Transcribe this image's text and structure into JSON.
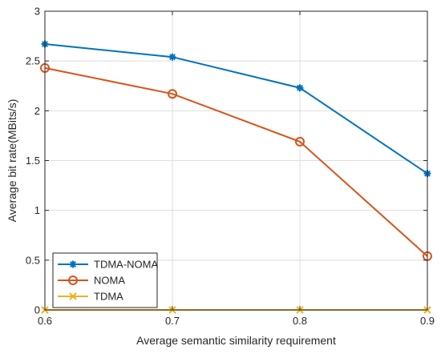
{
  "chart_data": {
    "type": "line",
    "xlabel": "Average semantic similarity requirement",
    "ylabel": "Average bit rate(MBits/s)",
    "x": [
      0.6,
      0.7,
      0.8,
      0.9
    ],
    "xlim": [
      0.6,
      0.9
    ],
    "ylim": [
      0,
      3
    ],
    "xticks": [
      "0.6",
      "0.7",
      "0.8",
      "0.9"
    ],
    "yticks": [
      "0",
      "0.5",
      "1",
      "1.5",
      "2",
      "2.5",
      "3"
    ],
    "grid": true,
    "legend_position": "bottom-left",
    "series": [
      {
        "name": "TDMA-NOMA",
        "values": [
          2.67,
          2.54,
          2.23,
          1.37
        ],
        "color": "#0072BD",
        "marker": "asterisk"
      },
      {
        "name": "NOMA",
        "values": [
          2.43,
          2.17,
          1.69,
          0.54
        ],
        "color": "#D95319",
        "marker": "circle"
      },
      {
        "name": "TDMA",
        "values": [
          0,
          0,
          0,
          0
        ],
        "color": "#EDB120",
        "marker": "x"
      }
    ]
  }
}
